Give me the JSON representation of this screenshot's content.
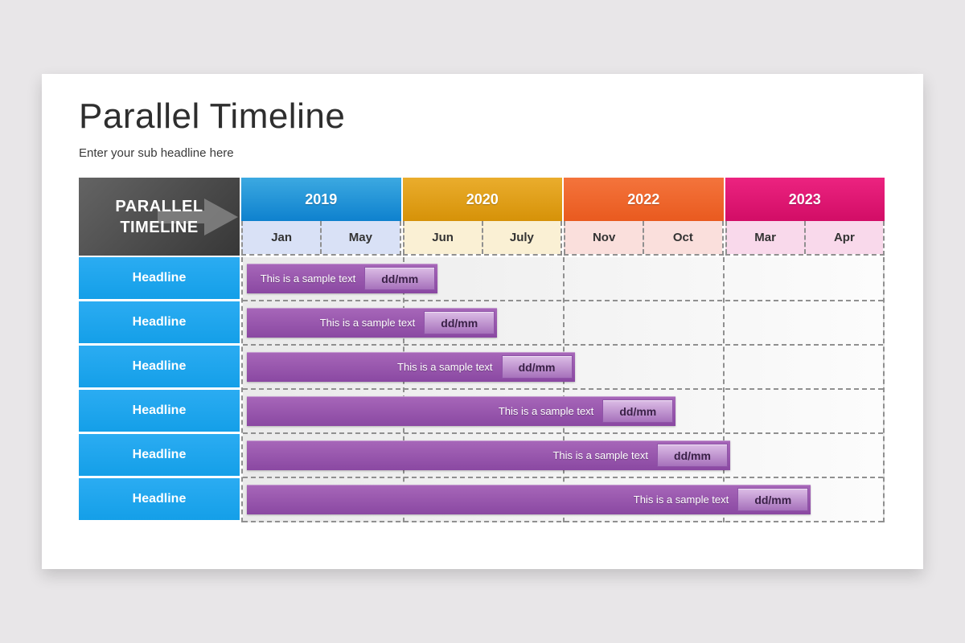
{
  "slide": {
    "title": "Parallel Timeline",
    "subtitle": "Enter your sub headline here"
  },
  "timeline": {
    "corner_label": "PARALLEL TIMELINE",
    "years": [
      {
        "label": "2019",
        "months": [
          "Jan",
          "May"
        ],
        "gradient_top": "#3CA9E1",
        "gradient_bottom": "#0E81CE",
        "month_bg": "#D9E1F6"
      },
      {
        "label": "2020",
        "months": [
          "Jun",
          "July"
        ],
        "gradient_top": "#EAAD2D",
        "gradient_bottom": "#D69208",
        "month_bg": "#FAF0D4"
      },
      {
        "label": "2022",
        "months": [
          "Nov",
          "Oct"
        ],
        "gradient_top": "#F4743C",
        "gradient_bottom": "#E95A1F",
        "month_bg": "#FADFDC"
      },
      {
        "label": "2023",
        "months": [
          "Mar",
          "Apr"
        ],
        "gradient_top": "#EC2380",
        "gradient_bottom": "#D20D66",
        "month_bg": "#F9D9EB"
      }
    ],
    "rows": [
      {
        "headline": "Headline",
        "bar_label": "This is a sample text",
        "badge": "dd/mm",
        "bar_width_pct": 29.8
      },
      {
        "headline": "Headline",
        "bar_label": "This is a sample text",
        "badge": "dd/mm",
        "bar_width_pct": 39.1
      },
      {
        "headline": "Headline",
        "bar_label": "This is a sample text",
        "badge": "dd/mm",
        "bar_width_pct": 51.2
      },
      {
        "headline": "Headline",
        "bar_label": "This is a sample text",
        "badge": "dd/mm",
        "bar_width_pct": 67.0
      },
      {
        "headline": "Headline",
        "bar_label": "This is a sample text",
        "badge": "dd/mm",
        "bar_width_pct": 75.5
      },
      {
        "headline": "Headline",
        "bar_label": "This is a sample text",
        "badge": "dd/mm",
        "bar_width_pct": 88.1
      }
    ],
    "colors": {
      "headline_bg_top": "#2BACF2",
      "headline_bg_bottom": "#149FE8",
      "bar_top": "#A767B9",
      "bar_bottom": "#8A48A2",
      "badge_top": "#DCBDE6",
      "badge_bottom": "#A671BB",
      "badge_border": "#8F54A8",
      "badge_text": "#3A2147",
      "corner_top": "#646464",
      "corner_bottom": "#373737",
      "arrow": "#8C8C8C",
      "grid_dash": "#909090"
    }
  }
}
